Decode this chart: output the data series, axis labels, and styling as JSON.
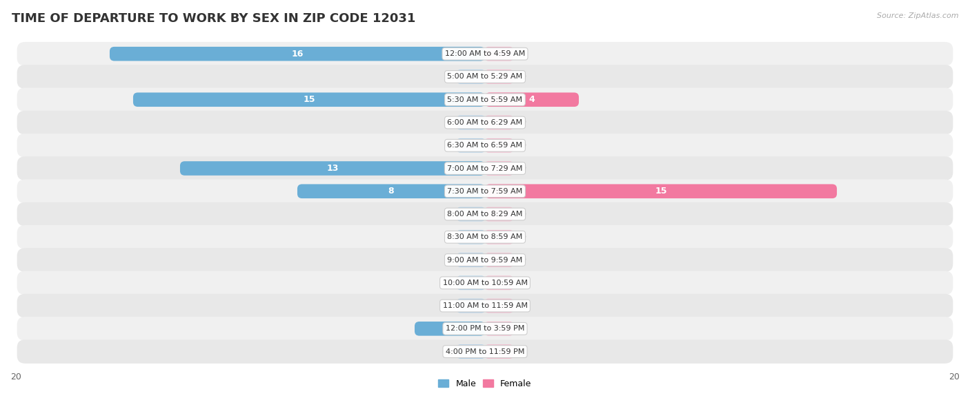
{
  "title": "TIME OF DEPARTURE TO WORK BY SEX IN ZIP CODE 12031",
  "source": "Source: ZipAtlas.com",
  "categories": [
    "12:00 AM to 4:59 AM",
    "5:00 AM to 5:29 AM",
    "5:30 AM to 5:59 AM",
    "6:00 AM to 6:29 AM",
    "6:30 AM to 6:59 AM",
    "7:00 AM to 7:29 AM",
    "7:30 AM to 7:59 AM",
    "8:00 AM to 8:29 AM",
    "8:30 AM to 8:59 AM",
    "9:00 AM to 9:59 AM",
    "10:00 AM to 10:59 AM",
    "11:00 AM to 11:59 AM",
    "12:00 PM to 3:59 PM",
    "4:00 PM to 11:59 PM"
  ],
  "male_values": [
    16,
    0,
    15,
    0,
    0,
    13,
    8,
    0,
    0,
    0,
    0,
    0,
    3,
    0
  ],
  "female_values": [
    0,
    0,
    4,
    0,
    0,
    0,
    15,
    0,
    0,
    0,
    0,
    0,
    0,
    0
  ],
  "male_color": "#6aaed6",
  "male_stub_color": "#aecfe8",
  "female_color": "#f279a0",
  "female_stub_color": "#f5b8cc",
  "xlim": 20,
  "stub_val": 1.2,
  "bar_height": 0.62,
  "row_bg_even": "#f0f0f0",
  "row_bg_odd": "#e8e8e8",
  "label_color_dark": "#555555",
  "title_fontsize": 13,
  "value_fontsize": 9,
  "category_fontsize": 8,
  "axis_fontsize": 9
}
